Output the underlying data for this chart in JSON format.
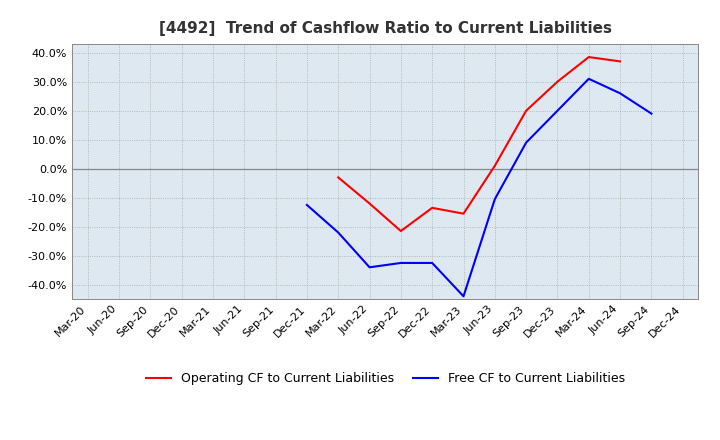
{
  "title": "[4492]  Trend of Cashflow Ratio to Current Liabilities",
  "x_labels": [
    "Mar-20",
    "Jun-20",
    "Sep-20",
    "Dec-20",
    "Mar-21",
    "Jun-21",
    "Sep-21",
    "Dec-21",
    "Mar-22",
    "Jun-22",
    "Sep-22",
    "Dec-22",
    "Mar-23",
    "Jun-23",
    "Sep-23",
    "Dec-23",
    "Mar-24",
    "Jun-24",
    "Sep-24",
    "Dec-24"
  ],
  "operating_cf": {
    "label": "Operating CF to Current Liabilities",
    "color": "#ff0000",
    "data": [
      [
        8,
        -3.0
      ],
      [
        9,
        -12.0
      ],
      [
        10,
        -21.5
      ],
      [
        11,
        -13.5
      ],
      [
        12,
        -15.5
      ],
      [
        13,
        1.0
      ],
      [
        14,
        20.0
      ],
      [
        15,
        30.0
      ],
      [
        16,
        38.5
      ],
      [
        17,
        37.0
      ]
    ]
  },
  "free_cf": {
    "label": "Free CF to Current Liabilities",
    "color": "#0000ff",
    "data": [
      [
        7,
        -12.5
      ],
      [
        8,
        -22.0
      ],
      [
        9,
        -34.0
      ],
      [
        10,
        -32.5
      ],
      [
        11,
        -32.5
      ],
      [
        12,
        -44.0
      ],
      [
        13,
        -10.5
      ],
      [
        14,
        9.0
      ],
      [
        15,
        20.0
      ],
      [
        16,
        31.0
      ],
      [
        17,
        26.0
      ],
      [
        18,
        19.0
      ]
    ]
  },
  "ylim": [
    -45,
    43
  ],
  "yticks": [
    -40,
    -30,
    -20,
    -10,
    0,
    10,
    20,
    30,
    40
  ],
  "plot_bg_color": "#dde8f0",
  "fig_bg_color": "#ffffff",
  "grid_color": "#aaaaaa",
  "title_fontsize": 11,
  "legend_fontsize": 9,
  "tick_fontsize": 8
}
